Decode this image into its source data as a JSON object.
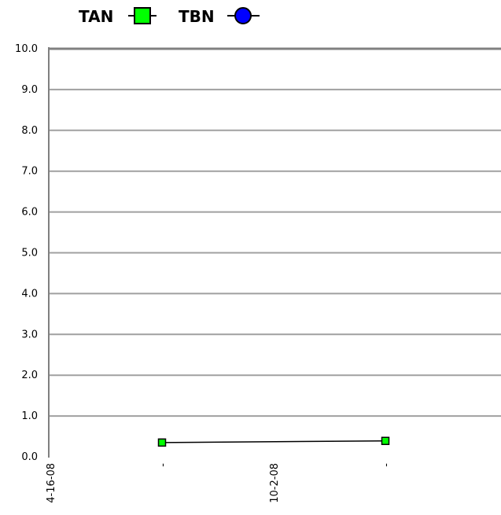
{
  "chart_data": {
    "type": "line",
    "title": "",
    "xlabel": "",
    "ylabel": "",
    "ylim": [
      0,
      10
    ],
    "y_ticks": [
      "0.0",
      "1.0",
      "2.0",
      "3.0",
      "4.0",
      "5.0",
      "6.0",
      "7.0",
      "8.0",
      "9.0",
      "10.0"
    ],
    "x_ticks": [
      "4-16-08",
      "-",
      "10-2-08",
      "-"
    ],
    "grid": true,
    "legend_position": "top-left",
    "series": [
      {
        "name": "TAN",
        "color": "#00ff00",
        "marker": "square",
        "points": [
          {
            "x": 1,
            "y": 0.35
          },
          {
            "x": 3,
            "y": 0.39
          }
        ]
      },
      {
        "name": "TBN",
        "color": "#0000ff",
        "marker": "circle",
        "points": []
      }
    ]
  }
}
